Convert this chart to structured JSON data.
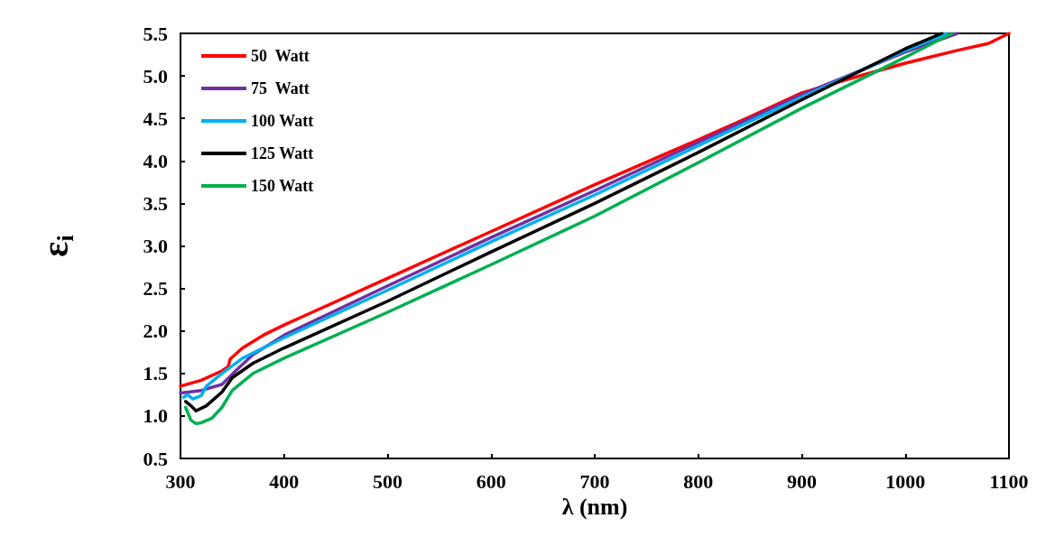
{
  "chart_data": {
    "type": "line",
    "xlabel": "λ (nm)",
    "ylabel": "ε$_{i}$",
    "xlim": [
      300,
      1100
    ],
    "xticks": [
      300,
      400,
      500,
      600,
      700,
      800,
      900,
      1000,
      1100
    ],
    "ylim": [
      0.5,
      5.5
    ],
    "yticks": [
      0.5,
      {
        "value": 1,
        "label": "1.0"
      },
      1.5,
      {
        "value": 2,
        "label": "2.0"
      },
      2.5,
      {
        "value": 3,
        "label": "3.0"
      },
      3.5,
      {
        "value": 4,
        "label": "4.0"
      },
      4.5,
      {
        "value": 5,
        "label": "5.0"
      },
      5.5
    ],
    "grid": false,
    "legend": "top left",
    "marker": "none",
    "line_style": "solid",
    "series": [
      {
        "name": "50  Watt",
        "color": "#ff0000",
        "x": [
          300,
          320,
          340,
          346,
          348,
          360,
          380,
          400,
          420,
          500,
          600,
          700,
          800,
          850,
          900,
          950,
          1000,
          1050,
          1080,
          1100
        ],
        "values": [
          1.35,
          1.42,
          1.53,
          1.58,
          1.67,
          1.8,
          1.95,
          2.07,
          2.18,
          2.62,
          3.17,
          3.72,
          4.25,
          4.52,
          4.8,
          4.98,
          5.15,
          5.3,
          5.38,
          5.5
        ]
      },
      {
        "name": "75  Watt",
        "color": "#7030a0",
        "x": [
          300,
          320,
          340,
          355,
          370,
          400,
          500,
          600,
          700,
          800,
          900,
          1000,
          1050
        ],
        "values": [
          1.27,
          1.3,
          1.37,
          1.55,
          1.72,
          1.95,
          2.53,
          3.1,
          3.65,
          4.22,
          4.78,
          5.28,
          5.5
        ]
      },
      {
        "name": "100 Watt",
        "color": "#00b0f0",
        "x": [
          303,
          307,
          312,
          320,
          325,
          340,
          360,
          400,
          500,
          600,
          700,
          800,
          900,
          1000,
          1040
        ],
        "values": [
          1.22,
          1.25,
          1.2,
          1.24,
          1.35,
          1.5,
          1.68,
          1.92,
          2.48,
          3.05,
          3.6,
          4.18,
          4.75,
          5.3,
          5.5
        ]
      },
      {
        "name": "125 Watt",
        "color": "#000000",
        "x": [
          305,
          310,
          315,
          325,
          340,
          350,
          370,
          400,
          500,
          600,
          700,
          800,
          900,
          1000,
          1035
        ],
        "values": [
          1.17,
          1.12,
          1.06,
          1.12,
          1.28,
          1.45,
          1.62,
          1.8,
          2.35,
          2.93,
          3.5,
          4.1,
          4.72,
          5.32,
          5.5
        ]
      },
      {
        "name": "150 Watt",
        "color": "#00b050",
        "x": [
          305,
          310,
          315,
          320,
          330,
          340,
          350,
          370,
          400,
          500,
          600,
          700,
          800,
          900,
          1000,
          1045
        ],
        "values": [
          1.1,
          0.95,
          0.91,
          0.92,
          0.97,
          1.1,
          1.3,
          1.5,
          1.68,
          2.22,
          2.78,
          3.35,
          3.98,
          4.62,
          5.22,
          5.5
        ]
      }
    ]
  }
}
